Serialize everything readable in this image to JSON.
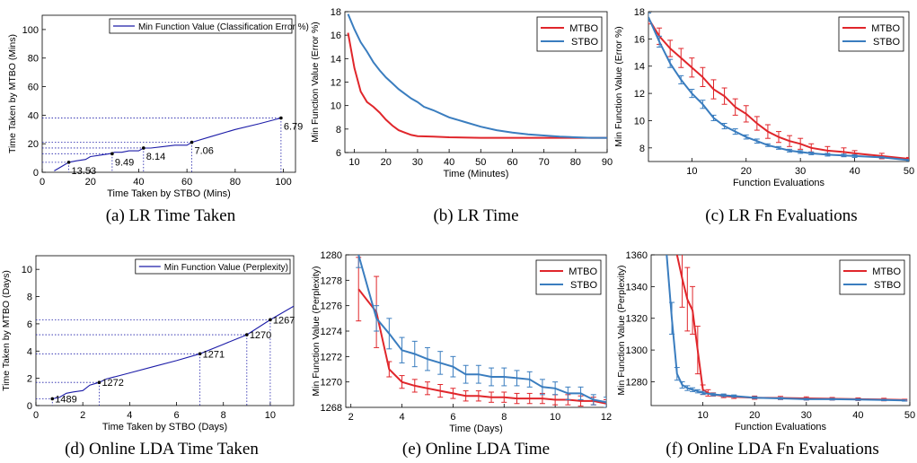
{
  "colors": {
    "mtbo": "#e0262b",
    "stbo": "#3a7dbf",
    "blue_line": "#1c1ca8"
  },
  "chart_data": [
    {
      "type": "line",
      "caption": "(a) LR Time Taken",
      "xlabel": "Time Taken by STBO (Mins)",
      "ylabel": "Time Taken by MTBO (Mins)",
      "xlim": [
        0,
        105
      ],
      "ylim": [
        0,
        110
      ],
      "xticks": [
        0,
        20,
        40,
        60,
        80,
        100
      ],
      "yticks": [
        0,
        20,
        40,
        60,
        80,
        100
      ],
      "legend": "top-right",
      "legend_box_frac": 0.72,
      "series": [
        {
          "name": "Min Function Value (Classification Error %)",
          "color": "blue_line",
          "x": [
            5,
            8,
            11,
            14,
            18,
            20,
            24,
            28,
            30,
            33,
            36,
            40,
            42,
            45,
            50,
            55,
            60,
            62,
            70,
            80,
            90,
            99
          ],
          "y": [
            1,
            4,
            7,
            8,
            9,
            11,
            12,
            13,
            14,
            14,
            15,
            15,
            17,
            17,
            18,
            19,
            19,
            21,
            25,
            30,
            34,
            38
          ]
        }
      ],
      "guides": [
        {
          "x": 11,
          "y": 7
        },
        {
          "x": 29,
          "y": 13
        },
        {
          "x": 42,
          "y": 17
        },
        {
          "x": 62,
          "y": 21
        },
        {
          "x": 99,
          "y": 38
        }
      ],
      "annotations": [
        {
          "x": 11,
          "y": 7,
          "text": "13.53"
        },
        {
          "x": 29,
          "y": 13,
          "text": "9.49"
        },
        {
          "x": 42,
          "y": 17,
          "text": "8.14"
        },
        {
          "x": 62,
          "y": 21,
          "text": "7.06"
        },
        {
          "x": 99,
          "y": 38,
          "text": "6.79"
        }
      ]
    },
    {
      "type": "line",
      "caption": "(b) LR Time",
      "xlabel": "Time (Minutes)",
      "ylabel": "Min Function Value (Error %)",
      "xlim": [
        7,
        90
      ],
      "ylim": [
        6,
        18
      ],
      "xticks": [
        10,
        20,
        30,
        40,
        50,
        60,
        70,
        80,
        90
      ],
      "yticks": [
        6,
        8,
        10,
        12,
        14,
        16,
        18
      ],
      "legend": "top-right",
      "series": [
        {
          "name": "MTBO",
          "color": "mtbo",
          "x": [
            8,
            10,
            12,
            14,
            16,
            18,
            20,
            22,
            24,
            26,
            28,
            30,
            35,
            40,
            50,
            60,
            70,
            80,
            90
          ],
          "y": [
            16.2,
            13.2,
            11.2,
            10.3,
            9.9,
            9.4,
            8.8,
            8.3,
            7.9,
            7.7,
            7.5,
            7.4,
            7.35,
            7.3,
            7.25,
            7.25,
            7.25,
            7.25,
            7.25
          ]
        },
        {
          "name": "STBO",
          "color": "stbo",
          "x": [
            8,
            10,
            12,
            14,
            16,
            18,
            20,
            22,
            24,
            26,
            28,
            30,
            32,
            35,
            40,
            45,
            50,
            55,
            60,
            65,
            70,
            75,
            80,
            85,
            90
          ],
          "y": [
            17.8,
            16.5,
            15.4,
            14.6,
            13.7,
            13.0,
            12.4,
            11.9,
            11.4,
            11.0,
            10.6,
            10.3,
            9.9,
            9.6,
            9.0,
            8.6,
            8.2,
            7.9,
            7.7,
            7.55,
            7.45,
            7.35,
            7.3,
            7.25,
            7.25
          ]
        }
      ]
    },
    {
      "type": "line",
      "caption": "(c) LR Fn Evaluations",
      "xlabel": "Function Evaluations",
      "ylabel": "Min Function Value (Error %)",
      "xlim": [
        2,
        50
      ],
      "ylim": [
        7,
        18
      ],
      "xticks": [
        10,
        20,
        30,
        40,
        50
      ],
      "yticks": [
        8,
        10,
        12,
        14,
        16,
        18
      ],
      "legend": "top-right",
      "series": [
        {
          "name": "MTBO",
          "color": "mtbo",
          "x": [
            2,
            4,
            6,
            8,
            10,
            12,
            14,
            16,
            18,
            20,
            22,
            24,
            26,
            28,
            30,
            32,
            35,
            38,
            40,
            45,
            50
          ],
          "y": [
            17.5,
            16.2,
            15.3,
            14.6,
            13.9,
            13.2,
            12.3,
            11.8,
            11.0,
            10.5,
            9.8,
            9.2,
            8.8,
            8.5,
            8.3,
            8.0,
            7.8,
            7.7,
            7.6,
            7.4,
            7.2
          ],
          "err": [
            0.4,
            0.6,
            0.6,
            0.7,
            0.7,
            0.7,
            0.7,
            0.6,
            0.6,
            0.6,
            0.5,
            0.5,
            0.4,
            0.4,
            0.4,
            0.3,
            0.3,
            0.3,
            0.2,
            0.2,
            0.1
          ]
        },
        {
          "name": "STBO",
          "color": "stbo",
          "x": [
            2,
            4,
            6,
            8,
            10,
            12,
            14,
            16,
            18,
            20,
            22,
            24,
            26,
            28,
            30,
            32,
            35,
            38,
            40,
            45,
            50
          ],
          "y": [
            17.6,
            15.8,
            14.2,
            13.0,
            12.0,
            11.2,
            10.2,
            9.6,
            9.2,
            8.8,
            8.5,
            8.2,
            8.0,
            7.8,
            7.7,
            7.6,
            7.5,
            7.45,
            7.4,
            7.3,
            7.1
          ],
          "err": [
            0.3,
            0.4,
            0.3,
            0.3,
            0.3,
            0.3,
            0.2,
            0.2,
            0.2,
            0.15,
            0.15,
            0.1,
            0.1,
            0.1,
            0.1,
            0.1,
            0.1,
            0.1,
            0.1,
            0.05,
            0.05
          ]
        }
      ]
    },
    {
      "type": "line",
      "caption": "(d) Online LDA Time Taken",
      "xlabel": "Time Taken by STBO (Days)",
      "ylabel": "Time Taken by MTBO (Days)",
      "xlim": [
        0,
        11
      ],
      "ylim": [
        0,
        11
      ],
      "xticks": [
        0,
        2,
        4,
        6,
        8,
        10
      ],
      "yticks": [
        0,
        2,
        4,
        6,
        8,
        10
      ],
      "legend": "top-right",
      "legend_box_frac": 0.6,
      "series": [
        {
          "name": "Min Function Value (Perplexity)",
          "color": "blue_line",
          "x": [
            0.7,
            1.0,
            1.3,
            1.6,
            2.0,
            2.3,
            2.7,
            3.0,
            4.0,
            5.0,
            6.0,
            7.0,
            8.0,
            9.0,
            10.0,
            11.0
          ],
          "y": [
            0.5,
            0.6,
            0.9,
            1.0,
            1.1,
            1.5,
            1.7,
            1.95,
            2.4,
            2.85,
            3.3,
            3.8,
            4.5,
            5.2,
            6.3,
            7.3
          ]
        }
      ],
      "guides": [
        {
          "x": 0.7,
          "y": 0.5
        },
        {
          "x": 2.7,
          "y": 1.7
        },
        {
          "x": 7.0,
          "y": 3.8
        },
        {
          "x": 9.0,
          "y": 5.2
        },
        {
          "x": 10.0,
          "y": 6.3
        }
      ],
      "annotations": [
        {
          "x": 0.7,
          "y": 0.5,
          "text": "1489"
        },
        {
          "x": 2.7,
          "y": 1.7,
          "text": "1272"
        },
        {
          "x": 7.0,
          "y": 3.8,
          "text": "1271"
        },
        {
          "x": 9.0,
          "y": 5.2,
          "text": "1270"
        },
        {
          "x": 10.0,
          "y": 6.3,
          "text": "1267"
        }
      ]
    },
    {
      "type": "line",
      "caption": "(e) Online LDA Time",
      "xlabel": "Time (Days)",
      "ylabel": "Min Function Value (Perplexity)",
      "xlim": [
        1.8,
        12
      ],
      "ylim": [
        1268,
        1280
      ],
      "xticks": [
        2,
        4,
        6,
        8,
        10,
        12
      ],
      "yticks": [
        1268,
        1270,
        1272,
        1274,
        1276,
        1278,
        1280
      ],
      "legend": "top-right",
      "series": [
        {
          "name": "MTBO",
          "color": "mtbo",
          "x": [
            2.3,
            3.0,
            3.5,
            4.0,
            4.5,
            5.0,
            5.5,
            6.0,
            6.5,
            7.0,
            7.5,
            8.0,
            8.5,
            9.0,
            9.5,
            10.0,
            10.5,
            11.0,
            11.5,
            12.0
          ],
          "y": [
            1277.3,
            1275.5,
            1271.0,
            1270.0,
            1269.7,
            1269.5,
            1269.3,
            1269.1,
            1268.9,
            1268.9,
            1268.8,
            1268.8,
            1268.7,
            1268.7,
            1268.7,
            1268.6,
            1268.6,
            1268.5,
            1268.5,
            1268.3
          ],
          "err": [
            2.5,
            2.8,
            0.6,
            0.5,
            0.5,
            0.5,
            0.5,
            0.4,
            0.4,
            0.4,
            0.4,
            0.4,
            0.4,
            0.4,
            0.4,
            0.4,
            0.4,
            0.4,
            0.3,
            0.3
          ]
        },
        {
          "name": "STBO",
          "color": "stbo",
          "x": [
            2.3,
            3.0,
            3.5,
            4.0,
            4.5,
            5.0,
            5.5,
            6.0,
            6.5,
            7.0,
            7.5,
            8.0,
            8.5,
            9.0,
            9.5,
            10.0,
            10.5,
            11.0,
            11.5,
            12.0
          ],
          "y": [
            1280.0,
            1275.0,
            1273.8,
            1272.5,
            1272.2,
            1271.8,
            1271.5,
            1271.2,
            1270.6,
            1270.6,
            1270.4,
            1270.4,
            1270.3,
            1270.2,
            1269.6,
            1269.5,
            1269.1,
            1269.1,
            1268.6,
            1268.4
          ],
          "err": [
            1.0,
            1.0,
            1.2,
            1.0,
            1.0,
            0.9,
            0.9,
            0.8,
            0.7,
            0.7,
            0.7,
            0.7,
            0.6,
            0.6,
            0.6,
            0.5,
            0.5,
            0.5,
            0.4,
            0.4
          ]
        }
      ]
    },
    {
      "type": "line",
      "caption": "(f) Online LDA Fn Evaluations",
      "xlabel": "Function Evaluations",
      "ylabel": "Min Function Value (Perplexity)",
      "xlim": [
        0,
        50
      ],
      "ylim": [
        1265,
        1360
      ],
      "xticks": [
        10,
        20,
        30,
        40,
        50
      ],
      "yticks": [
        1280,
        1300,
        1320,
        1340,
        1360
      ],
      "legend": "top-right",
      "series": [
        {
          "name": "MTBO",
          "color": "mtbo",
          "x": [
            5,
            6,
            7,
            8,
            9,
            10,
            11,
            12,
            14,
            16,
            20,
            25,
            30,
            35,
            40,
            45,
            49
          ],
          "y": [
            1360,
            1345,
            1332,
            1325,
            1300,
            1275,
            1273,
            1272,
            1271,
            1270.5,
            1270,
            1269.8,
            1269.5,
            1269.3,
            1269,
            1268.8,
            1268.5
          ],
          "err": [
            0,
            18,
            20,
            15,
            15,
            3,
            2,
            1,
            1,
            1,
            1,
            1,
            1,
            0.8,
            0.8,
            0.8,
            0.5
          ]
        },
        {
          "name": "STBO",
          "color": "stbo",
          "x": [
            3,
            4,
            5,
            6,
            7,
            8,
            9,
            10,
            12,
            14,
            16,
            20,
            25,
            30,
            35,
            40,
            45,
            49
          ],
          "y": [
            1360,
            1320,
            1285,
            1278,
            1276,
            1275,
            1274,
            1273,
            1272,
            1271.5,
            1271,
            1270,
            1269.5,
            1269,
            1269,
            1268.8,
            1268.5,
            1268.2
          ],
          "err": [
            0,
            10,
            4,
            2,
            1.5,
            1.2,
            1,
            1,
            0.8,
            0.8,
            0.7,
            0.6,
            0.6,
            0.5,
            0.5,
            0.5,
            0.4,
            0.4
          ]
        }
      ]
    }
  ]
}
